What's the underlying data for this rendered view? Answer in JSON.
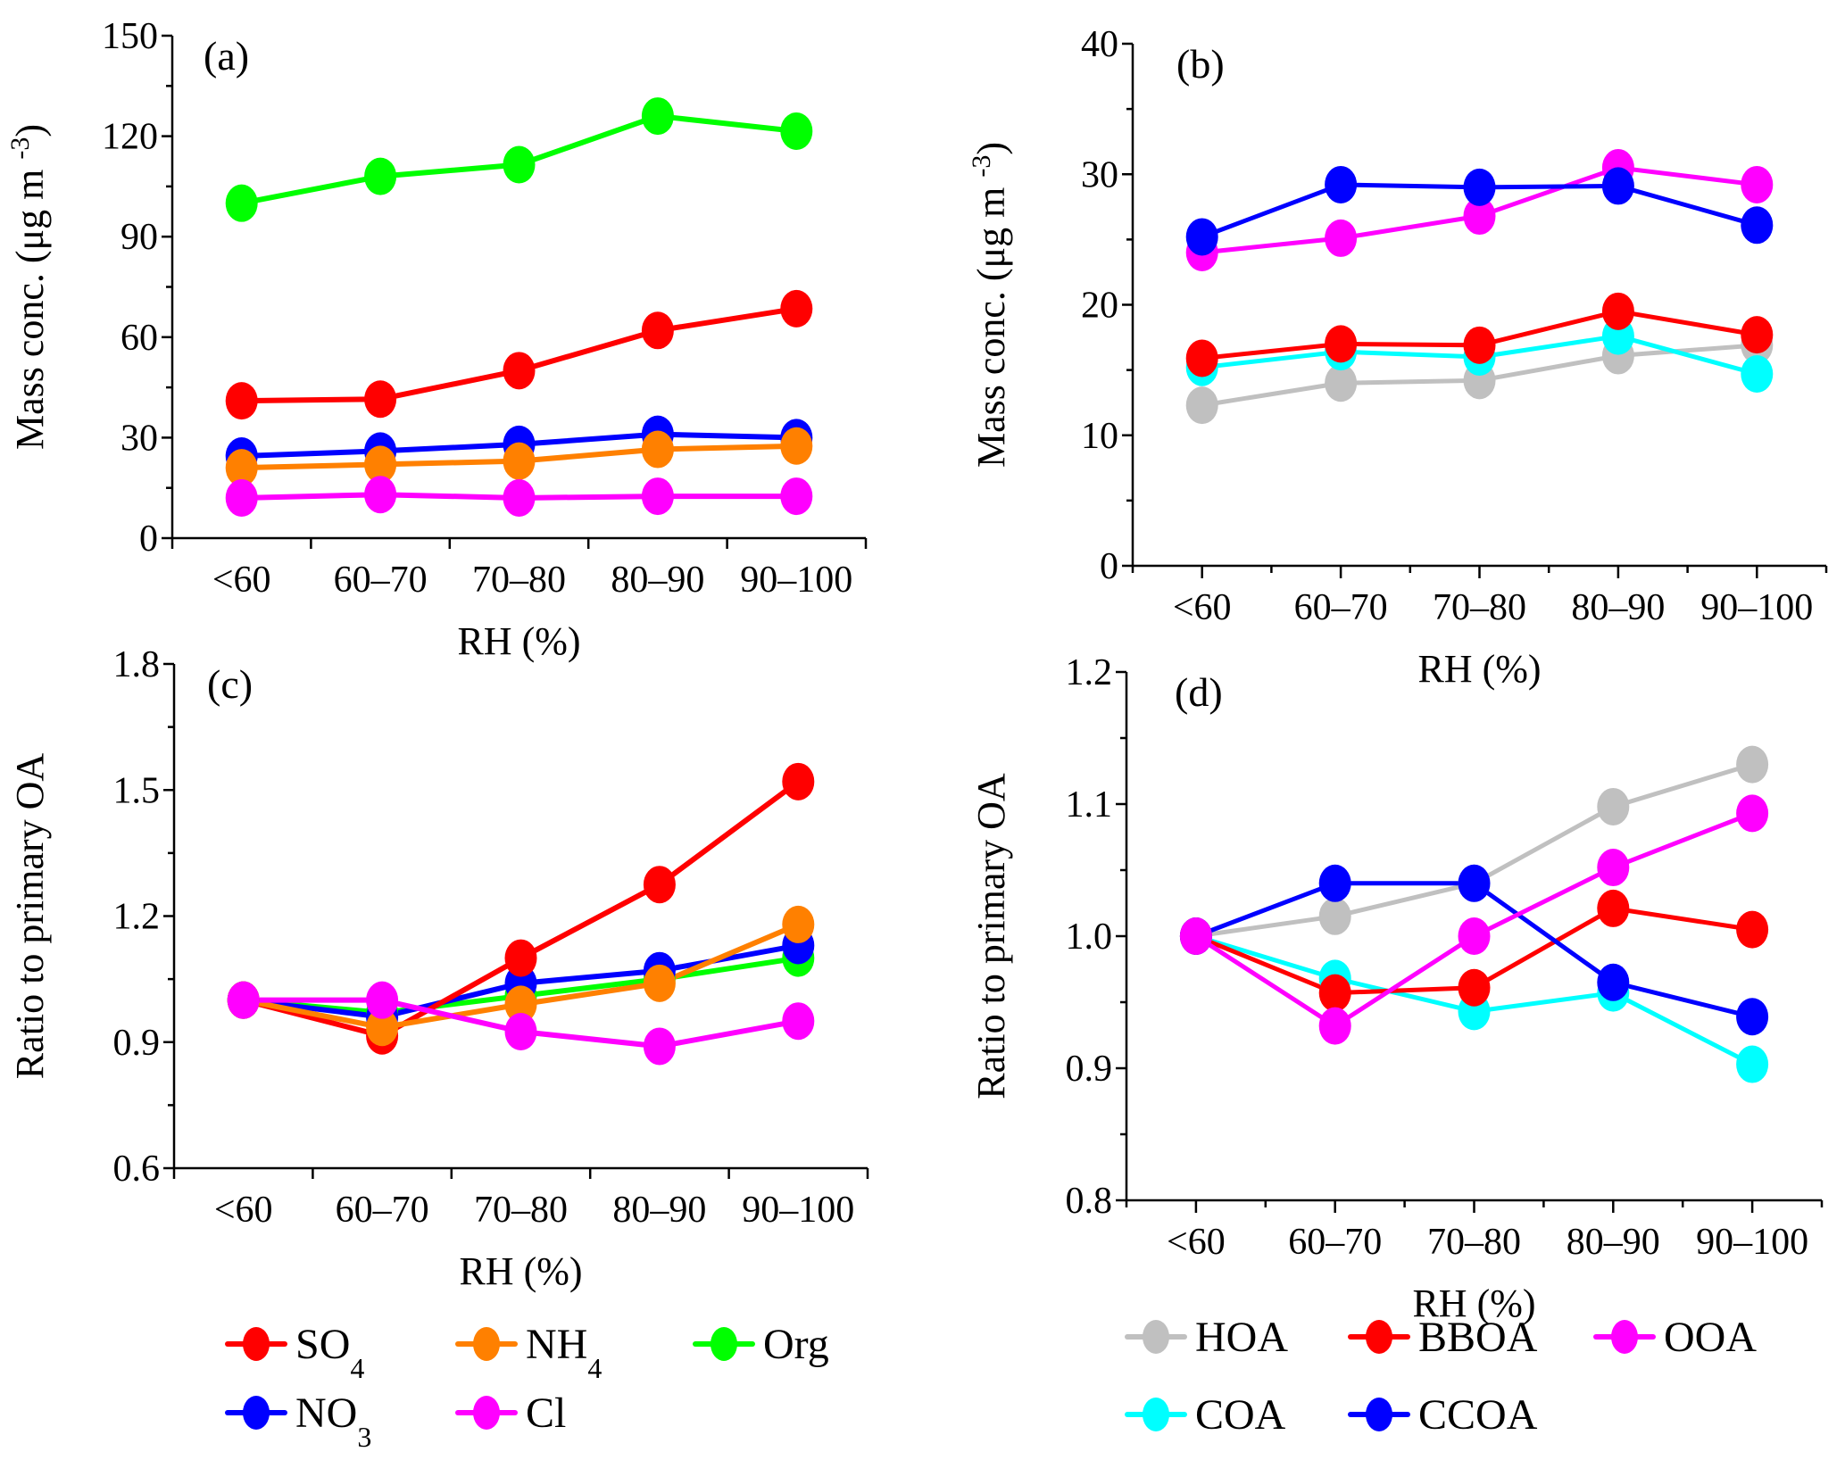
{
  "figure": {
    "legend_left": [
      {
        "key": "SO4",
        "label": "SO",
        "sub": "4",
        "color": "#ff0000"
      },
      {
        "key": "NH4",
        "label": "NH",
        "sub": "4",
        "color": "#ff8000"
      },
      {
        "key": "Org",
        "label": "Org",
        "sub": "",
        "color": "#00ff00"
      },
      {
        "key": "NO3",
        "label": "NO",
        "sub": "3",
        "color": "#0000ff"
      },
      {
        "key": "Cl",
        "label": "Cl",
        "sub": "",
        "color": "#ff00ff"
      }
    ],
    "legend_right": [
      {
        "key": "HOA",
        "label": "HOA",
        "sub": "",
        "color": "#c0c0c0"
      },
      {
        "key": "BBOA",
        "label": "BBOA",
        "sub": "",
        "color": "#ff0000"
      },
      {
        "key": "OOA",
        "label": "OOA",
        "sub": "",
        "color": "#ff00ff"
      },
      {
        "key": "COA",
        "label": "COA",
        "sub": "",
        "color": "#00ffff"
      },
      {
        "key": "CCOA",
        "label": "CCOA",
        "sub": "",
        "color": "#0000ff"
      }
    ]
  },
  "chart_data": [
    {
      "panel": "(a)",
      "type": "line",
      "title": "",
      "xlabel": "RH (%)",
      "ylabel": "Mass conc. (μg m -3)",
      "ylabel_main": "Mass conc. (μg m ",
      "ylabel_sup": "-3",
      "ylabel_end": ")",
      "categories": [
        "<60",
        "60–70",
        "70–80",
        "80–90",
        "90–100"
      ],
      "ylim": [
        0,
        150
      ],
      "yticks": [
        0,
        30,
        60,
        90,
        120,
        150
      ],
      "ytick_labels": [
        "0",
        "30",
        "60",
        "90",
        "120",
        "150"
      ],
      "minor_step": 15,
      "grid": false,
      "series": [
        {
          "name": "Org",
          "color": "#00ff00",
          "values": [
            100,
            108,
            111.5,
            126,
            121.5
          ]
        },
        {
          "name": "SO4",
          "color": "#ff0000",
          "values": [
            41,
            41.5,
            50,
            62,
            68.5
          ]
        },
        {
          "name": "NO3",
          "color": "#0000ff",
          "values": [
            24.5,
            26,
            28,
            31,
            30
          ]
        },
        {
          "name": "NH4",
          "color": "#ff8000",
          "values": [
            21,
            22,
            23,
            26.5,
            27.5
          ]
        },
        {
          "name": "Cl",
          "color": "#ff00ff",
          "values": [
            12,
            13,
            12,
            12.5,
            12.5
          ]
        }
      ]
    },
    {
      "panel": "(b)",
      "type": "line",
      "title": "",
      "xlabel": "RH (%)",
      "ylabel": "Mass conc. (μg m -3)",
      "ylabel_main": "Mass conc. (μg m ",
      "ylabel_sup": "-3",
      "ylabel_end": ")",
      "categories": [
        "<60",
        "60–70",
        "70–80",
        "80–90",
        "90–100"
      ],
      "ylim": [
        0,
        40
      ],
      "yticks": [
        0,
        10,
        20,
        30,
        40
      ],
      "ytick_labels": [
        "0",
        "10",
        "20",
        "30",
        "40"
      ],
      "minor_step": 5,
      "grid": false,
      "series": [
        {
          "name": "HOA",
          "color": "#c0c0c0",
          "values": [
            12.3,
            14.0,
            14.2,
            16.1,
            16.9
          ]
        },
        {
          "name": "COA",
          "color": "#00ffff",
          "values": [
            15.2,
            16.4,
            16.0,
            17.6,
            14.7
          ]
        },
        {
          "name": "BBOA",
          "color": "#ff0000",
          "values": [
            15.9,
            17.0,
            16.9,
            19.5,
            17.7
          ]
        },
        {
          "name": "OOA",
          "color": "#ff00ff",
          "values": [
            24.0,
            25.1,
            26.8,
            30.5,
            29.2
          ]
        },
        {
          "name": "CCOA",
          "color": "#0000ff",
          "values": [
            25.2,
            29.2,
            29.0,
            29.1,
            26.1
          ]
        }
      ]
    },
    {
      "panel": "(c)",
      "type": "line",
      "title": "",
      "xlabel": "RH (%)",
      "ylabel": "Ratio to primary OA",
      "ylabel_main": "Ratio to primary OA",
      "ylabel_sup": "",
      "ylabel_end": "",
      "categories": [
        "<60",
        "60–70",
        "70–80",
        "80–90",
        "90–100"
      ],
      "ylim": [
        0.6,
        1.8
      ],
      "yticks": [
        0.6,
        0.9,
        1.2,
        1.5,
        1.8
      ],
      "ytick_labels": [
        "0.6",
        "0.9",
        "1.2",
        "1.5",
        "1.8"
      ],
      "minor_step": 0.15,
      "grid": false,
      "series": [
        {
          "name": "Org",
          "color": "#00ff00",
          "values": [
            1.0,
            0.97,
            1.01,
            1.05,
            1.1
          ]
        },
        {
          "name": "NO3",
          "color": "#0000ff",
          "values": [
            1.0,
            0.96,
            1.04,
            1.07,
            1.13
          ]
        },
        {
          "name": "SO4",
          "color": "#ff0000",
          "values": [
            1.0,
            0.915,
            1.1,
            1.275,
            1.52
          ]
        },
        {
          "name": "NH4",
          "color": "#ff8000",
          "values": [
            1.0,
            0.935,
            0.99,
            1.04,
            1.18
          ]
        },
        {
          "name": "Cl",
          "color": "#ff00ff",
          "values": [
            1.0,
            1.0,
            0.925,
            0.89,
            0.95
          ]
        }
      ]
    },
    {
      "panel": "(d)",
      "type": "line",
      "title": "",
      "xlabel": "RH (%)",
      "ylabel": "Ratio to primary OA",
      "ylabel_main": "Ratio to primary OA",
      "ylabel_sup": "",
      "ylabel_end": "",
      "categories": [
        "<60",
        "60–70",
        "70–80",
        "80–90",
        "90–100"
      ],
      "ylim": [
        0.8,
        1.2
      ],
      "yticks": [
        0.8,
        0.9,
        1.0,
        1.1,
        1.2
      ],
      "ytick_labels": [
        "0.8",
        "0.9",
        "1.0",
        "1.1",
        "1.2"
      ],
      "minor_step": 0.05,
      "grid": false,
      "series": [
        {
          "name": "HOA",
          "color": "#c0c0c0",
          "values": [
            1.0,
            1.015,
            1.04,
            1.098,
            1.13
          ]
        },
        {
          "name": "COA",
          "color": "#00ffff",
          "values": [
            1.0,
            0.968,
            0.943,
            0.957,
            0.903
          ]
        },
        {
          "name": "BBOA",
          "color": "#ff0000",
          "values": [
            1.0,
            0.957,
            0.961,
            1.021,
            1.005
          ]
        },
        {
          "name": "CCOA",
          "color": "#0000ff",
          "values": [
            1.0,
            1.04,
            1.04,
            0.965,
            0.939
          ]
        },
        {
          "name": "OOA",
          "color": "#ff00ff",
          "values": [
            1.0,
            0.932,
            1.0,
            1.052,
            1.093
          ]
        }
      ]
    }
  ]
}
